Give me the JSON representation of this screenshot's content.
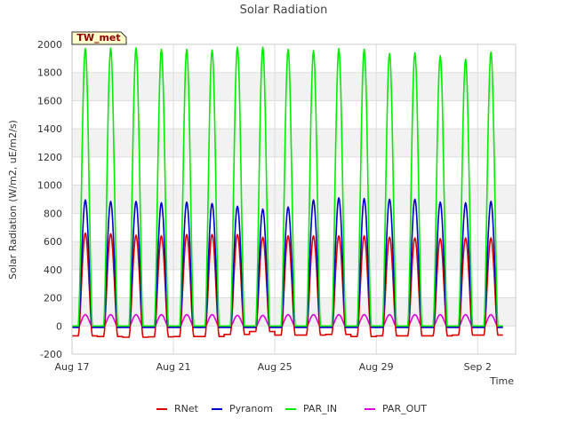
{
  "chart_data": {
    "type": "line",
    "title": "Solar Radiation",
    "xlabel": "Time",
    "ylabel": "Solar Radiation (W/m2, uE/m2/s)",
    "station_label": "TW_met",
    "xlim": [
      0,
      17.5
    ],
    "ylim": [
      -200,
      2000
    ],
    "x_ticks": [
      {
        "value": 0,
        "label": "Aug 17"
      },
      {
        "value": 4,
        "label": "Aug 21"
      },
      {
        "value": 8,
        "label": "Aug 25"
      },
      {
        "value": 12,
        "label": "Aug 29"
      },
      {
        "value": 16,
        "label": "Sep 2"
      }
    ],
    "y_ticks": [
      -200,
      0,
      200,
      400,
      600,
      800,
      1000,
      1200,
      1400,
      1600,
      1800,
      2000
    ],
    "grid": true,
    "legend_position": "bottom",
    "days": [
      "Aug 17",
      "Aug 18",
      "Aug 19",
      "Aug 20",
      "Aug 21",
      "Aug 22",
      "Aug 23",
      "Aug 24",
      "Aug 25",
      "Aug 26",
      "Aug 27",
      "Aug 28",
      "Aug 29",
      "Aug 30",
      "Aug 31",
      "Sep 1",
      "Sep 2"
    ],
    "series": [
      {
        "name": "RNet",
        "color": "#dd0000",
        "night": [
          -70,
          -75,
          -80,
          -78,
          -75,
          -75,
          -60,
          -40,
          -65,
          -65,
          -60,
          -75,
          -70,
          -70,
          -70,
          -65,
          -65
        ],
        "daily_peak": [
          660,
          655,
          645,
          640,
          650,
          650,
          650,
          630,
          640,
          640,
          640,
          640,
          630,
          625,
          620,
          625,
          625
        ]
      },
      {
        "name": "Pyranom",
        "color": "#0000cc",
        "night": [
          -10,
          -10,
          -10,
          -10,
          -10,
          -10,
          -10,
          -10,
          -10,
          -10,
          -10,
          -10,
          -10,
          -10,
          -10,
          -10,
          -10
        ],
        "daily_peak": [
          895,
          885,
          885,
          875,
          880,
          870,
          850,
          830,
          845,
          895,
          910,
          905,
          900,
          900,
          880,
          875,
          885
        ]
      },
      {
        "name": "PAR_IN",
        "color": "#00ee00",
        "night": [
          0,
          0,
          0,
          0,
          0,
          0,
          0,
          0,
          0,
          0,
          0,
          0,
          0,
          0,
          0,
          0,
          0
        ],
        "daily_peak": [
          1970,
          1975,
          1975,
          1965,
          1965,
          1960,
          1980,
          1980,
          1965,
          1955,
          1970,
          1965,
          1935,
          1940,
          1920,
          1895,
          1945
        ]
      },
      {
        "name": "PAR_OUT",
        "color": "#dd00dd",
        "night": [
          -5,
          -5,
          -5,
          -5,
          -5,
          -5,
          -5,
          -5,
          -5,
          -5,
          -5,
          -5,
          -5,
          -5,
          -5,
          -5,
          -5
        ],
        "daily_peak": [
          80,
          80,
          80,
          80,
          80,
          80,
          75,
          75,
          80,
          80,
          80,
          80,
          80,
          80,
          80,
          80,
          80
        ]
      }
    ]
  }
}
